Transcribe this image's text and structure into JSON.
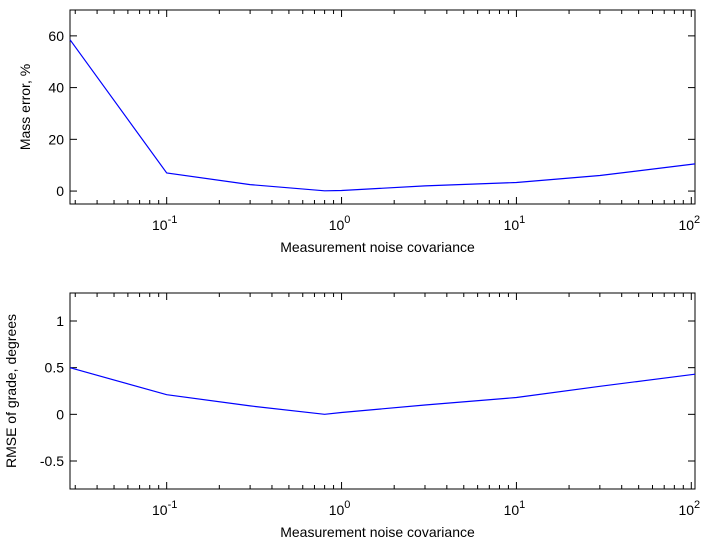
{
  "chart_data": [
    {
      "type": "line",
      "xscale": "log",
      "xlabel": "Measurement noise covariance",
      "ylabel": "Mass error, %",
      "xlim": [
        0.028,
        105
      ],
      "ylim": [
        -5,
        70
      ],
      "xticks": [
        {
          "base": "10",
          "exp": "-1",
          "value": 0.1
        },
        {
          "base": "10",
          "exp": "0",
          "value": 1
        },
        {
          "base": "10",
          "exp": "1",
          "value": 10
        },
        {
          "base": "10",
          "exp": "2",
          "value": 100
        }
      ],
      "yticks": [
        {
          "label": "0",
          "value": 0
        },
        {
          "label": "20",
          "value": 20
        },
        {
          "label": "40",
          "value": 40
        },
        {
          "label": "60",
          "value": 60
        }
      ],
      "series": [
        {
          "color": "#0000ff",
          "x": [
            0.028,
            0.1,
            0.3,
            0.8,
            1.0,
            3.0,
            10.0,
            30.0,
            105.0
          ],
          "y": [
            58.5,
            7.0,
            2.5,
            0.1,
            0.2,
            2.0,
            3.3,
            6.0,
            10.5
          ]
        }
      ],
      "grid": false
    },
    {
      "type": "line",
      "xscale": "log",
      "xlabel": "Measurement noise covariance",
      "ylabel": "RMSE of grade, degrees",
      "xlim": [
        0.028,
        105
      ],
      "ylim": [
        -0.8,
        1.3
      ],
      "xticks": [
        {
          "base": "10",
          "exp": "-1",
          "value": 0.1
        },
        {
          "base": "10",
          "exp": "0",
          "value": 1
        },
        {
          "base": "10",
          "exp": "1",
          "value": 10
        },
        {
          "base": "10",
          "exp": "2",
          "value": 100
        }
      ],
      "yticks": [
        {
          "label": "-0.5",
          "value": -0.5
        },
        {
          "label": "0",
          "value": 0
        },
        {
          "label": "0.5",
          "value": 0.5
        },
        {
          "label": "1",
          "value": 1
        }
      ],
      "series": [
        {
          "color": "#0000ff",
          "x": [
            0.028,
            0.1,
            0.3,
            0.8,
            1.0,
            3.0,
            10.0,
            30.0,
            105.0
          ],
          "y": [
            0.5,
            0.21,
            0.09,
            0.0,
            0.02,
            0.1,
            0.18,
            0.3,
            0.43
          ]
        }
      ],
      "grid": false
    }
  ]
}
